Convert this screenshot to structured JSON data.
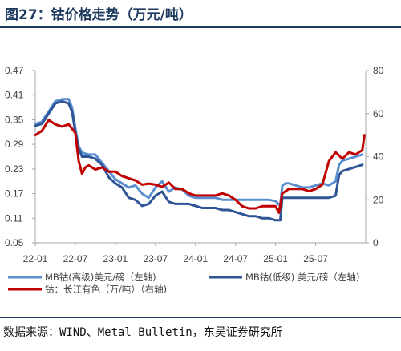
{
  "title": "图27：钴价格走势（万元/吨）",
  "source": "数据来源：WIND、Metal Bulletin，东吴证券研究所",
  "chart_data": {
    "type": "line",
    "x_ticks": [
      "22-01",
      "22-07",
      "23-01",
      "23-07",
      "24-01",
      "24-07",
      "25-01",
      "25-07"
    ],
    "x_tick_months": [
      0,
      6,
      12,
      18,
      24,
      30,
      36,
      42
    ],
    "x_range_months": [
      0,
      49.5
    ],
    "left_axis": {
      "ticks": [
        "0.05",
        "0.11",
        "0.17",
        "0.23",
        "0.29",
        "0.35",
        "0.41",
        "0.47"
      ],
      "range": [
        0.05,
        0.47
      ]
    },
    "right_axis": {
      "ticks": [
        "0",
        "20",
        "40",
        "60",
        "80"
      ],
      "range": [
        0,
        80
      ]
    },
    "series": [
      {
        "name": "MB钴(高级)美元/磅（左轴)",
        "color": "#5b8fd0",
        "axis": "left",
        "points": [
          [
            0,
            0.34
          ],
          [
            1,
            0.345
          ],
          [
            2,
            0.37
          ],
          [
            3,
            0.395
          ],
          [
            4,
            0.4
          ],
          [
            5,
            0.4
          ],
          [
            5.5,
            0.38
          ],
          [
            6,
            0.33
          ],
          [
            6.5,
            0.285
          ],
          [
            7,
            0.27
          ],
          [
            8,
            0.265
          ],
          [
            9,
            0.265
          ],
          [
            10,
            0.245
          ],
          [
            11,
            0.225
          ],
          [
            12,
            0.205
          ],
          [
            13,
            0.195
          ],
          [
            14,
            0.185
          ],
          [
            15,
            0.19
          ],
          [
            16,
            0.17
          ],
          [
            17,
            0.16
          ],
          [
            18,
            0.185
          ],
          [
            19,
            0.2
          ],
          [
            20,
            0.175
          ],
          [
            21,
            0.185
          ],
          [
            22,
            0.18
          ],
          [
            23,
            0.165
          ],
          [
            24,
            0.16
          ],
          [
            25,
            0.16
          ],
          [
            26,
            0.16
          ],
          [
            27,
            0.16
          ],
          [
            28,
            0.155
          ],
          [
            29,
            0.155
          ],
          [
            30,
            0.155
          ],
          [
            31,
            0.155
          ],
          [
            32,
            0.155
          ],
          [
            33,
            0.155
          ],
          [
            34,
            0.155
          ],
          [
            35,
            0.155
          ],
          [
            36,
            0.152
          ],
          [
            36.7,
            0.14
          ],
          [
            37,
            0.19
          ],
          [
            37.5,
            0.195
          ],
          [
            38,
            0.195
          ],
          [
            39,
            0.19
          ],
          [
            40,
            0.185
          ],
          [
            41,
            0.185
          ],
          [
            42,
            0.19
          ],
          [
            43,
            0.195
          ],
          [
            44,
            0.19
          ],
          [
            45,
            0.2
          ],
          [
            45.5,
            0.24
          ],
          [
            46,
            0.25
          ],
          [
            47,
            0.255
          ],
          [
            48,
            0.26
          ],
          [
            49,
            0.265
          ]
        ]
      },
      {
        "name": "MB钴(低级) 美元/磅（左轴)",
        "color": "#2f5596",
        "axis": "left",
        "points": [
          [
            0,
            0.335
          ],
          [
            1,
            0.34
          ],
          [
            2,
            0.365
          ],
          [
            3,
            0.39
          ],
          [
            4,
            0.395
          ],
          [
            5,
            0.39
          ],
          [
            5.5,
            0.37
          ],
          [
            6,
            0.32
          ],
          [
            6.5,
            0.28
          ],
          [
            7,
            0.26
          ],
          [
            8,
            0.26
          ],
          [
            9,
            0.255
          ],
          [
            10,
            0.24
          ],
          [
            11,
            0.21
          ],
          [
            12,
            0.195
          ],
          [
            13,
            0.185
          ],
          [
            14,
            0.16
          ],
          [
            15,
            0.155
          ],
          [
            16,
            0.14
          ],
          [
            17,
            0.145
          ],
          [
            18,
            0.165
          ],
          [
            19,
            0.175
          ],
          [
            20,
            0.15
          ],
          [
            21,
            0.145
          ],
          [
            22,
            0.145
          ],
          [
            23,
            0.145
          ],
          [
            24,
            0.14
          ],
          [
            25,
            0.135
          ],
          [
            26,
            0.135
          ],
          [
            27,
            0.135
          ],
          [
            28,
            0.13
          ],
          [
            29,
            0.13
          ],
          [
            30,
            0.125
          ],
          [
            31,
            0.12
          ],
          [
            32,
            0.115
          ],
          [
            33,
            0.115
          ],
          [
            34,
            0.11
          ],
          [
            35,
            0.11
          ],
          [
            36,
            0.105
          ],
          [
            36.7,
            0.105
          ],
          [
            37,
            0.16
          ],
          [
            38,
            0.16
          ],
          [
            39,
            0.16
          ],
          [
            40,
            0.16
          ],
          [
            41,
            0.16
          ],
          [
            42,
            0.16
          ],
          [
            43,
            0.16
          ],
          [
            44,
            0.16
          ],
          [
            45,
            0.165
          ],
          [
            45.5,
            0.215
          ],
          [
            46,
            0.225
          ],
          [
            47,
            0.23
          ],
          [
            48,
            0.235
          ],
          [
            49,
            0.24
          ]
        ]
      },
      {
        "name": "钴：长江有色（万/吨）（右轴)",
        "color": "#c00000",
        "axis": "right",
        "points": [
          [
            0,
            50
          ],
          [
            1,
            52
          ],
          [
            2,
            57
          ],
          [
            3,
            55
          ],
          [
            4,
            54
          ],
          [
            5,
            55
          ],
          [
            6,
            51
          ],
          [
            6.5,
            38
          ],
          [
            7,
            32
          ],
          [
            7.5,
            35
          ],
          [
            8,
            36
          ],
          [
            9,
            34
          ],
          [
            10,
            35
          ],
          [
            11,
            33
          ],
          [
            12,
            33
          ],
          [
            13,
            31
          ],
          [
            14,
            30
          ],
          [
            15,
            29
          ],
          [
            16,
            27
          ],
          [
            17,
            27.5
          ],
          [
            18,
            27
          ],
          [
            19,
            26
          ],
          [
            20,
            28
          ],
          [
            21,
            25
          ],
          [
            22,
            25
          ],
          [
            23,
            23
          ],
          [
            24,
            22
          ],
          [
            25,
            22
          ],
          [
            26,
            22
          ],
          [
            27,
            22
          ],
          [
            28,
            23
          ],
          [
            29,
            22
          ],
          [
            30,
            20
          ],
          [
            31,
            17
          ],
          [
            32,
            16
          ],
          [
            33,
            16
          ],
          [
            34,
            17
          ],
          [
            35,
            17
          ],
          [
            36,
            17
          ],
          [
            36.5,
            14
          ],
          [
            37,
            23
          ],
          [
            38,
            25
          ],
          [
            39,
            25
          ],
          [
            40,
            25
          ],
          [
            41,
            24
          ],
          [
            42,
            25
          ],
          [
            43,
            27
          ],
          [
            44,
            38
          ],
          [
            45,
            42
          ],
          [
            46,
            39
          ],
          [
            47,
            42
          ],
          [
            48,
            41
          ],
          [
            49,
            43
          ],
          [
            49.3,
            50
          ]
        ]
      }
    ],
    "grid": false,
    "legend_placement": "bottom"
  }
}
